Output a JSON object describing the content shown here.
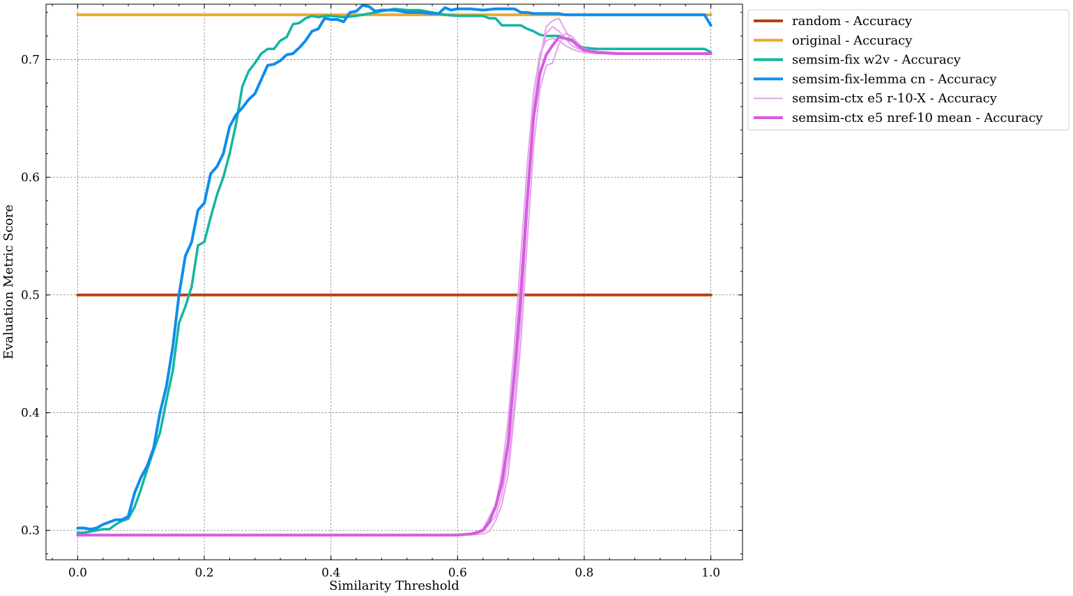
{
  "chart_data": {
    "type": "line",
    "xlabel": "Similarity Threshold",
    "ylabel": "Evaluation Metric Score",
    "xlim": [
      -0.05,
      1.05
    ],
    "ylim": [
      0.275,
      0.747
    ],
    "xticks": [
      0.0,
      0.2,
      0.4,
      0.6,
      0.8,
      1.0
    ],
    "xtick_labels": [
      "0.0",
      "0.2",
      "0.4",
      "0.6",
      "0.8",
      "1.0"
    ],
    "yticks": [
      0.3,
      0.4,
      0.5,
      0.6,
      0.7
    ],
    "ytick_labels": [
      "0.3",
      "0.4",
      "0.5",
      "0.6",
      "0.7"
    ],
    "grid": true,
    "legend_position": "outside-top-right",
    "series": [
      {
        "name": "random - Accuracy",
        "color": "#b5410f",
        "width": 4,
        "opacity": 1,
        "show_in_legend": true,
        "x": [
          0.0,
          1.0
        ],
        "y": [
          0.5,
          0.5
        ]
      },
      {
        "name": "original - Accuracy",
        "color": "#eba82e",
        "width": 4,
        "opacity": 1,
        "show_in_legend": true,
        "x": [
          0.0,
          1.0
        ],
        "y": [
          0.738,
          0.738
        ]
      },
      {
        "name": "semsim-fix w2v - Accuracy",
        "color": "#12b5a2",
        "width": 3.5,
        "opacity": 1,
        "show_in_legend": true,
        "x": [
          0.0,
          0.01,
          0.02,
          0.03,
          0.04,
          0.05,
          0.06,
          0.07,
          0.08,
          0.09,
          0.1,
          0.11,
          0.12,
          0.13,
          0.14,
          0.15,
          0.16,
          0.17,
          0.18,
          0.19,
          0.2,
          0.21,
          0.22,
          0.23,
          0.24,
          0.25,
          0.26,
          0.27,
          0.28,
          0.29,
          0.3,
          0.31,
          0.32,
          0.33,
          0.34,
          0.35,
          0.36,
          0.37,
          0.38,
          0.39,
          0.4,
          0.42,
          0.44,
          0.46,
          0.48,
          0.5,
          0.52,
          0.54,
          0.56,
          0.58,
          0.6,
          0.62,
          0.64,
          0.65,
          0.66,
          0.67,
          0.68,
          0.69,
          0.7,
          0.71,
          0.72,
          0.73,
          0.74,
          0.75,
          0.76,
          0.77,
          0.78,
          0.79,
          0.8,
          0.82,
          0.85,
          0.9,
          0.95,
          0.99,
          1.0
        ],
        "y": [
          0.298,
          0.298,
          0.299,
          0.3,
          0.301,
          0.301,
          0.305,
          0.308,
          0.31,
          0.32,
          0.335,
          0.352,
          0.368,
          0.383,
          0.41,
          0.435,
          0.476,
          0.49,
          0.507,
          0.542,
          0.545,
          0.566,
          0.585,
          0.6,
          0.62,
          0.645,
          0.677,
          0.69,
          0.697,
          0.705,
          0.709,
          0.709,
          0.716,
          0.719,
          0.73,
          0.731,
          0.735,
          0.737,
          0.736,
          0.737,
          0.737,
          0.736,
          0.737,
          0.739,
          0.741,
          0.743,
          0.742,
          0.742,
          0.74,
          0.738,
          0.737,
          0.737,
          0.737,
          0.735,
          0.735,
          0.729,
          0.729,
          0.729,
          0.729,
          0.726,
          0.724,
          0.721,
          0.72,
          0.72,
          0.72,
          0.718,
          0.717,
          0.712,
          0.71,
          0.709,
          0.709,
          0.709,
          0.709,
          0.709,
          0.706
        ]
      },
      {
        "name": "semsim-fix-lemma cn - Accuracy",
        "color": "#0f8ded",
        "width": 4,
        "opacity": 1,
        "show_in_legend": true,
        "x": [
          0.0,
          0.01,
          0.02,
          0.03,
          0.04,
          0.05,
          0.06,
          0.07,
          0.08,
          0.09,
          0.1,
          0.11,
          0.12,
          0.13,
          0.14,
          0.15,
          0.16,
          0.17,
          0.18,
          0.19,
          0.2,
          0.21,
          0.22,
          0.23,
          0.24,
          0.25,
          0.26,
          0.27,
          0.28,
          0.29,
          0.3,
          0.31,
          0.32,
          0.33,
          0.34,
          0.35,
          0.36,
          0.37,
          0.38,
          0.39,
          0.4,
          0.41,
          0.42,
          0.43,
          0.44,
          0.45,
          0.46,
          0.47,
          0.48,
          0.49,
          0.5,
          0.52,
          0.54,
          0.56,
          0.57,
          0.58,
          0.59,
          0.6,
          0.62,
          0.64,
          0.66,
          0.68,
          0.69,
          0.7,
          0.71,
          0.72,
          0.74,
          0.76,
          0.77,
          0.78,
          0.8,
          0.85,
          0.9,
          0.95,
          0.99,
          1.0
        ],
        "y": [
          0.302,
          0.302,
          0.301,
          0.302,
          0.305,
          0.307,
          0.309,
          0.309,
          0.312,
          0.332,
          0.345,
          0.355,
          0.37,
          0.4,
          0.422,
          0.455,
          0.5,
          0.533,
          0.545,
          0.572,
          0.578,
          0.603,
          0.609,
          0.62,
          0.643,
          0.653,
          0.659,
          0.666,
          0.671,
          0.683,
          0.695,
          0.696,
          0.699,
          0.704,
          0.705,
          0.71,
          0.716,
          0.724,
          0.726,
          0.735,
          0.734,
          0.734,
          0.732,
          0.74,
          0.741,
          0.746,
          0.745,
          0.741,
          0.742,
          0.742,
          0.742,
          0.74,
          0.74,
          0.739,
          0.739,
          0.744,
          0.742,
          0.743,
          0.743,
          0.742,
          0.743,
          0.743,
          0.743,
          0.74,
          0.74,
          0.739,
          0.739,
          0.739,
          0.738,
          0.738,
          0.738,
          0.738,
          0.738,
          0.738,
          0.738,
          0.729
        ]
      },
      {
        "name": "semsim-ctx e5 r-10-X - Accuracy",
        "color": "#e3a3e9",
        "width": 2,
        "opacity": 1,
        "show_in_legend": true,
        "x": [
          0.0,
          0.55,
          0.62,
          0.64,
          0.66,
          0.67,
          0.68,
          0.69,
          0.7,
          0.71,
          0.72,
          0.73,
          0.74,
          0.75,
          0.76,
          0.77,
          0.78,
          0.79,
          0.8,
          0.82,
          0.85,
          0.9,
          1.0
        ],
        "y": [
          0.296,
          0.296,
          0.297,
          0.299,
          0.312,
          0.33,
          0.36,
          0.41,
          0.48,
          0.57,
          0.65,
          0.7,
          0.728,
          0.733,
          0.735,
          0.725,
          0.716,
          0.71,
          0.708,
          0.706,
          0.705,
          0.705,
          0.705
        ]
      },
      {
        "name": "",
        "color": "#e3a3e9",
        "width": 2,
        "opacity": 1,
        "show_in_legend": false,
        "x": [
          0.0,
          0.55,
          0.62,
          0.64,
          0.65,
          0.66,
          0.67,
          0.68,
          0.69,
          0.7,
          0.71,
          0.72,
          0.73,
          0.74,
          0.75,
          0.76,
          0.77,
          0.78,
          0.79,
          0.8,
          0.82,
          0.85,
          0.9,
          1.0
        ],
        "y": [
          0.296,
          0.296,
          0.296,
          0.297,
          0.299,
          0.308,
          0.322,
          0.348,
          0.4,
          0.46,
          0.545,
          0.625,
          0.675,
          0.695,
          0.697,
          0.713,
          0.722,
          0.72,
          0.714,
          0.709,
          0.707,
          0.706,
          0.705,
          0.705
        ]
      },
      {
        "name": "",
        "color": "#e3a3e9",
        "width": 2,
        "opacity": 1,
        "show_in_legend": false,
        "x": [
          0.0,
          0.55,
          0.62,
          0.64,
          0.66,
          0.67,
          0.68,
          0.69,
          0.7,
          0.71,
          0.72,
          0.73,
          0.74,
          0.75,
          0.76,
          0.77,
          0.78,
          0.79,
          0.8,
          0.82,
          0.85,
          0.9,
          1.0
        ],
        "y": [
          0.296,
          0.296,
          0.297,
          0.301,
          0.322,
          0.35,
          0.395,
          0.46,
          0.535,
          0.61,
          0.672,
          0.705,
          0.716,
          0.718,
          0.716,
          0.712,
          0.709,
          0.707,
          0.706,
          0.705,
          0.705,
          0.705,
          0.705
        ]
      },
      {
        "name": "",
        "color": "#e3a3e9",
        "width": 2,
        "opacity": 1,
        "show_in_legend": false,
        "x": [
          0.0,
          0.55,
          0.62,
          0.64,
          0.66,
          0.67,
          0.68,
          0.69,
          0.7,
          0.71,
          0.72,
          0.73,
          0.74,
          0.75,
          0.76,
          0.77,
          0.78,
          0.79,
          0.8,
          0.82,
          0.85,
          0.9,
          1.0
        ],
        "y": [
          0.296,
          0.296,
          0.297,
          0.3,
          0.318,
          0.34,
          0.38,
          0.44,
          0.515,
          0.59,
          0.66,
          0.7,
          0.722,
          0.728,
          0.724,
          0.718,
          0.712,
          0.709,
          0.707,
          0.705,
          0.705,
          0.705,
          0.705
        ]
      },
      {
        "name": "semsim-ctx e5 nref-10 mean - Accuracy",
        "color": "#d65be0",
        "width": 4,
        "opacity": 1,
        "show_in_legend": true,
        "x": [
          0.0,
          0.55,
          0.6,
          0.62,
          0.63,
          0.64,
          0.65,
          0.66,
          0.67,
          0.68,
          0.69,
          0.7,
          0.71,
          0.72,
          0.73,
          0.74,
          0.75,
          0.76,
          0.77,
          0.78,
          0.79,
          0.8,
          0.82,
          0.85,
          0.9,
          1.0
        ],
        "y": [
          0.296,
          0.296,
          0.296,
          0.297,
          0.298,
          0.3,
          0.307,
          0.32,
          0.34,
          0.375,
          0.435,
          0.5,
          0.58,
          0.65,
          0.688,
          0.704,
          0.712,
          0.719,
          0.718,
          0.716,
          0.712,
          0.708,
          0.706,
          0.705,
          0.705,
          0.705
        ]
      }
    ]
  }
}
